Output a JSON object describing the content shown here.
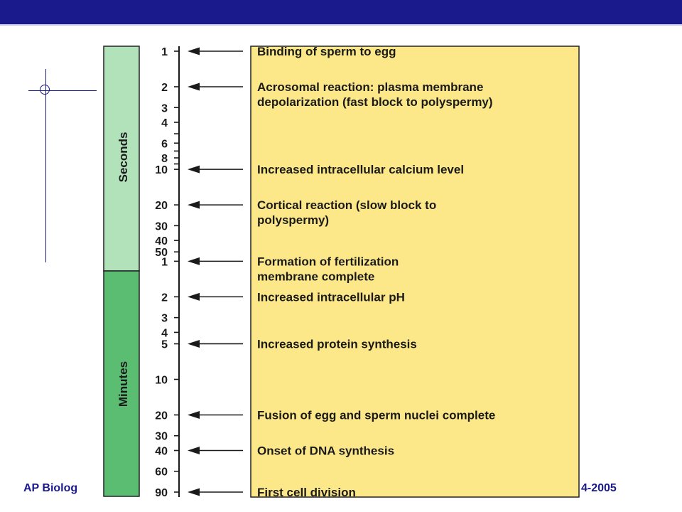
{
  "footer": {
    "left": "AP Biolog",
    "right": "4-2005"
  },
  "bands": {
    "seconds": {
      "label": "Seconds",
      "color": "#b2e2b9"
    },
    "minutes": {
      "label": "Minutes",
      "color": "#5bbd72"
    }
  },
  "colors": {
    "box": "#fde889",
    "banner": "#1a1a8c"
  },
  "ticks": [
    {
      "label": "1",
      "t": 1,
      "labeled": true
    },
    {
      "label": "2",
      "t": 2,
      "labeled": true
    },
    {
      "label": "3",
      "t": 3,
      "labeled": true
    },
    {
      "label": "4",
      "t": 4,
      "labeled": true
    },
    {
      "label": "",
      "t": 5,
      "labeled": false
    },
    {
      "label": "6",
      "t": 6,
      "labeled": true
    },
    {
      "label": "",
      "t": 7,
      "labeled": false
    },
    {
      "label": "8",
      "t": 8,
      "labeled": true
    },
    {
      "label": "",
      "t": 9,
      "labeled": false
    },
    {
      "label": "10",
      "t": 10,
      "labeled": true
    },
    {
      "label": "20",
      "t": 20,
      "labeled": true
    },
    {
      "label": "30",
      "t": 30,
      "labeled": true
    },
    {
      "label": "40",
      "t": 40,
      "labeled": true
    },
    {
      "label": "50",
      "t": 50,
      "labeled": true
    },
    {
      "label": "1",
      "t": 60,
      "labeled": true
    },
    {
      "label": "2",
      "t": 120,
      "labeled": true
    },
    {
      "label": "3",
      "t": 180,
      "labeled": true
    },
    {
      "label": "4",
      "t": 240,
      "labeled": true
    },
    {
      "label": "5",
      "t": 300,
      "labeled": true
    },
    {
      "label": "10",
      "t": 600,
      "labeled": true
    },
    {
      "label": "20",
      "t": 1200,
      "labeled": true
    },
    {
      "label": "30",
      "t": 1800,
      "labeled": true
    },
    {
      "label": "40",
      "t": 2400,
      "labeled": true
    },
    {
      "label": "60",
      "t": 3600,
      "labeled": true
    },
    {
      "label": "90",
      "t": 5400,
      "labeled": true
    }
  ],
  "events": [
    {
      "t": 1,
      "lines": [
        "Binding of sperm to egg"
      ]
    },
    {
      "t": 2,
      "lines": [
        "Acrosomal reaction: plasma membrane",
        "depolarization (fast block to polyspermy)"
      ]
    },
    {
      "t": 10,
      "lines": [
        "Increased intracellular calcium level"
      ]
    },
    {
      "t": 20,
      "lines": [
        "Cortical reaction (slow block to",
        "polyspermy)"
      ]
    },
    {
      "t": 60,
      "lines": [
        "Formation of fertilization",
        "membrane complete"
      ]
    },
    {
      "t": 120,
      "lines": [
        "Increased intracellular pH"
      ]
    },
    {
      "t": 300,
      "lines": [
        "Increased protein synthesis"
      ]
    },
    {
      "t": 1200,
      "lines": [
        "Fusion of egg and sperm nuclei complete"
      ]
    },
    {
      "t": 2400,
      "lines": [
        "Onset of DNA synthesis"
      ]
    },
    {
      "t": 5400,
      "lines": [
        "First cell division"
      ]
    }
  ]
}
